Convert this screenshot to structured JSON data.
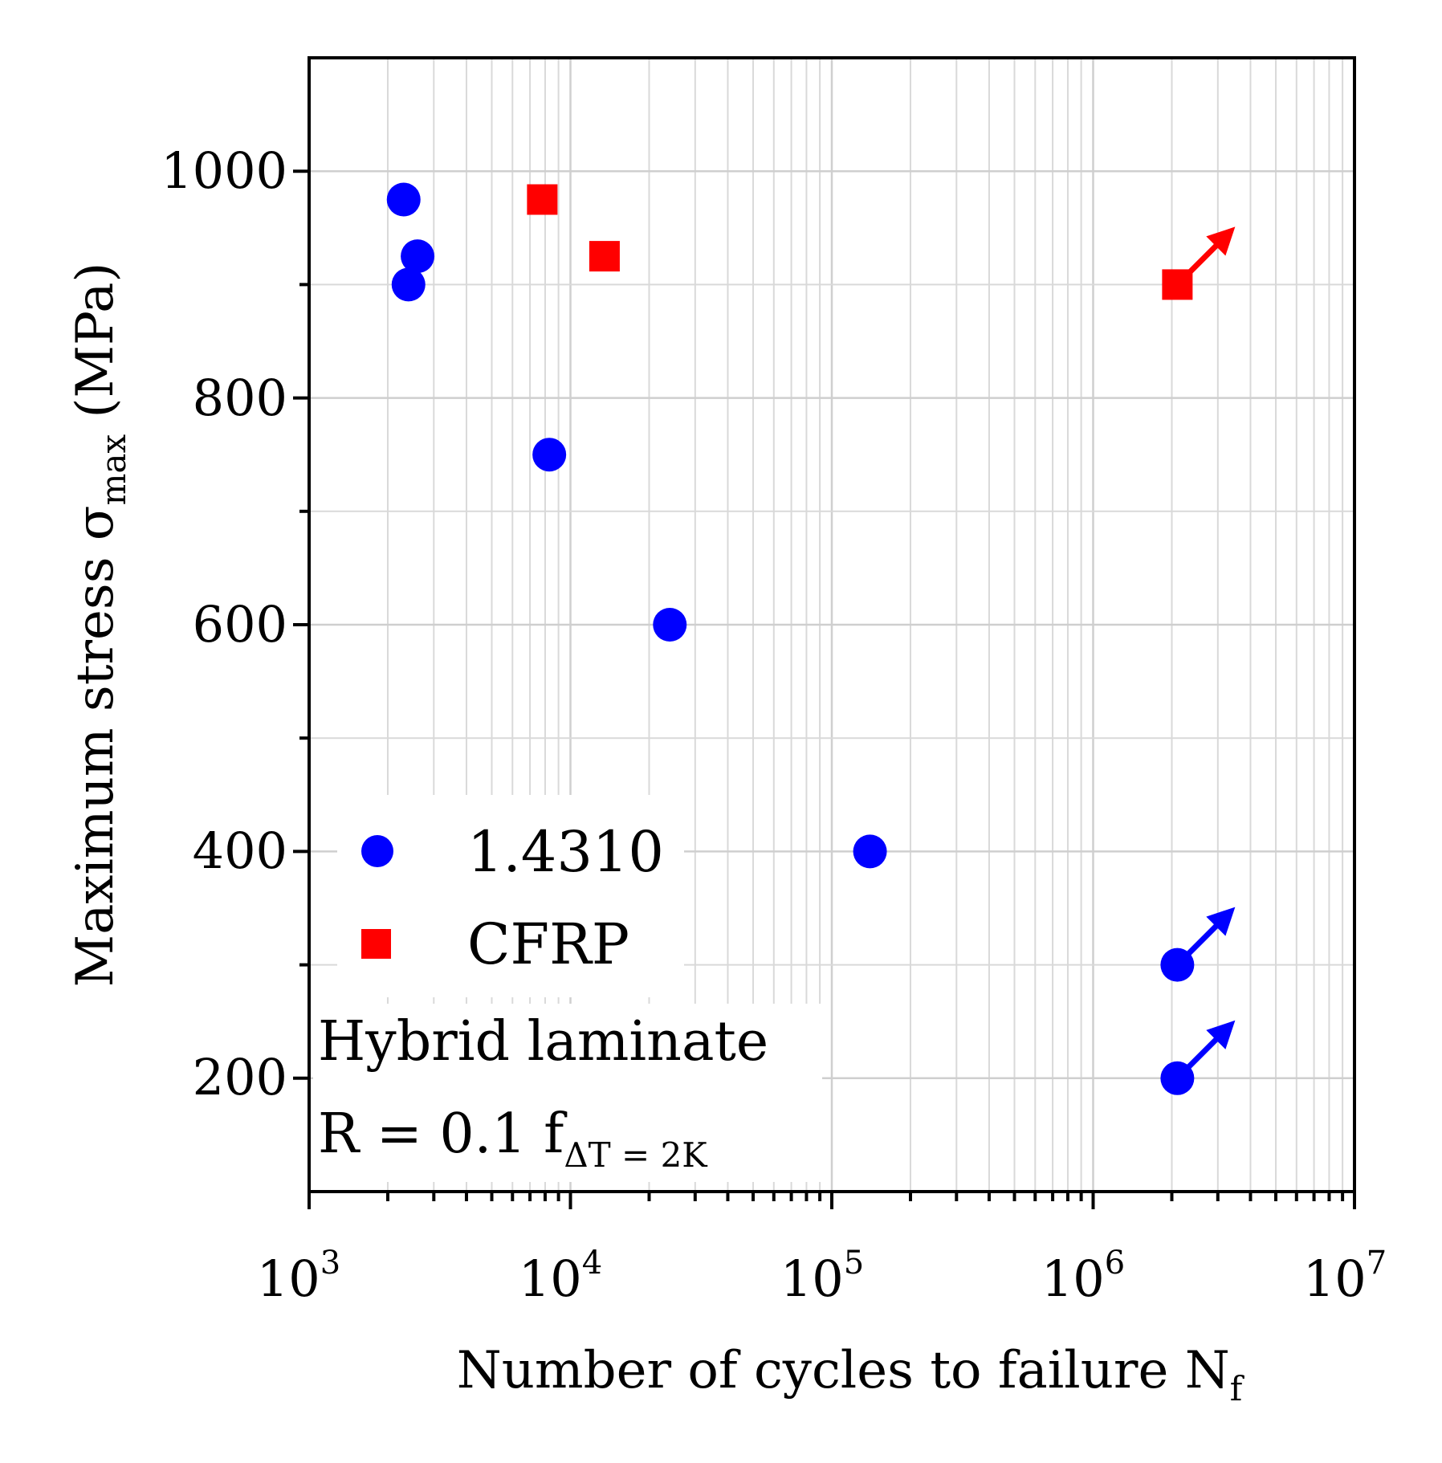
{
  "chart_data": {
    "type": "scatter",
    "xscale": "log",
    "xlim": [
      1000,
      10000000
    ],
    "ylim": [
      100,
      1100
    ],
    "xlabel": "Number of cycles to failure N",
    "xlabel_sub": "f",
    "ylabel": "Maximum stress σ",
    "ylabel_sub": "max",
    "ylabel_unit": " (MPa)",
    "x_tick_labels": [
      {
        "base": "10",
        "exp": "3",
        "value": 1000
      },
      {
        "base": "10",
        "exp": "4",
        "value": 10000
      },
      {
        "base": "10",
        "exp": "5",
        "value": 100000
      },
      {
        "base": "10",
        "exp": "6",
        "value": 1000000
      },
      {
        "base": "10",
        "exp": "7",
        "value": 10000000
      }
    ],
    "y_tick_labels": [
      "200",
      "400",
      "600",
      "800",
      "1000"
    ],
    "y_tick_values": [
      200,
      400,
      600,
      800,
      1000
    ],
    "y_minor_values": [
      300,
      500,
      700,
      900
    ],
    "series": [
      {
        "name": "1.4310",
        "marker": "circle",
        "color": "#0000ff",
        "points": [
          {
            "x": 2300,
            "y": 975
          },
          {
            "x": 2600,
            "y": 925
          },
          {
            "x": 2400,
            "y": 900
          },
          {
            "x": 8300,
            "y": 750
          },
          {
            "x": 24000,
            "y": 600
          },
          {
            "x": 140000,
            "y": 400
          },
          {
            "x": 2100000,
            "y": 300,
            "runout": true
          },
          {
            "x": 2100000,
            "y": 200,
            "runout": true
          }
        ]
      },
      {
        "name": "CFRP",
        "marker": "square",
        "color": "#ff0000",
        "points": [
          {
            "x": 7800,
            "y": 975
          },
          {
            "x": 13500,
            "y": 925
          },
          {
            "x": 2100000,
            "y": 900,
            "runout": true
          }
        ]
      }
    ],
    "annotation": {
      "line1": "Hybrid laminate",
      "line2": "R = 0.1  f",
      "line2_sub": "ΔT = 2K"
    },
    "legend_position": "lower-left",
    "grid": true
  }
}
